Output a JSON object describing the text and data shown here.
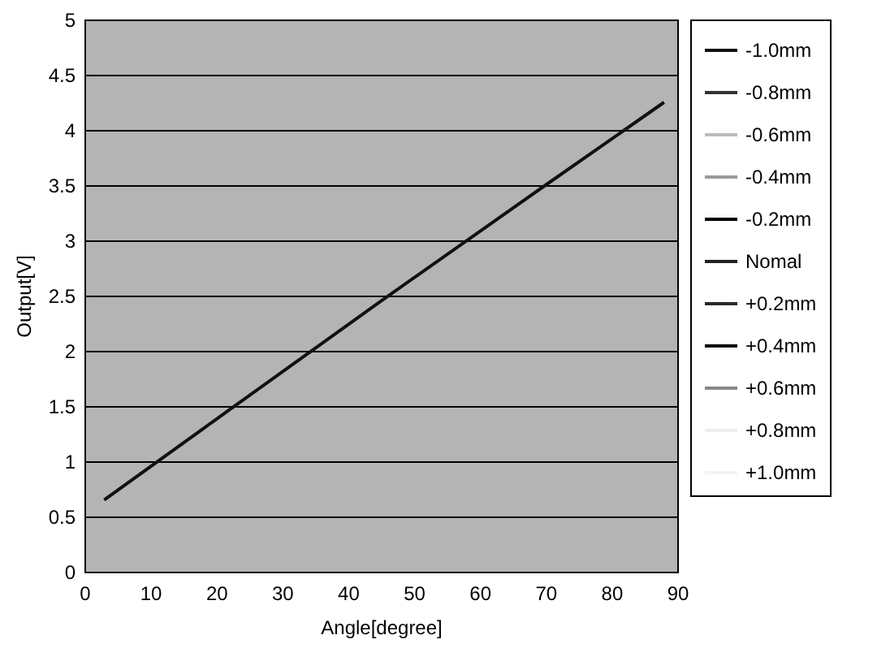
{
  "chart_data": {
    "type": "line",
    "xlabel": "Angle[degree]",
    "ylabel": "Output[V]",
    "x": [
      3,
      20,
      45,
      70,
      88
    ],
    "series": [
      {
        "name": "-1.0mm",
        "color": "#111111",
        "values": [
          0.65,
          1.38,
          2.45,
          3.5,
          4.25
        ]
      },
      {
        "name": "-0.8mm",
        "color": "#333333",
        "values": [
          null,
          null,
          null,
          null,
          null
        ]
      },
      {
        "name": "-0.6mm",
        "color": "#bbbbbb",
        "values": [
          null,
          null,
          null,
          null,
          null
        ]
      },
      {
        "name": "-0.4mm",
        "color": "#999999",
        "values": [
          null,
          null,
          null,
          null,
          null
        ]
      },
      {
        "name": "-0.2mm",
        "color": "#000000",
        "values": [
          null,
          null,
          null,
          null,
          null
        ]
      },
      {
        "name": "Nomal",
        "color": "#222222",
        "values": [
          null,
          null,
          null,
          null,
          null
        ]
      },
      {
        "name": "+0.2mm",
        "color": "#2a2a2a",
        "values": [
          null,
          null,
          null,
          null,
          null
        ]
      },
      {
        "name": "+0.4mm",
        "color": "#0a0a0a",
        "values": [
          null,
          null,
          null,
          null,
          null
        ]
      },
      {
        "name": "+0.6mm",
        "color": "#888888",
        "values": [
          null,
          null,
          null,
          null,
          null
        ]
      },
      {
        "name": "+0.8mm",
        "color": "#eeeeee",
        "values": [
          null,
          null,
          null,
          null,
          null
        ]
      },
      {
        "name": "+1.0mm",
        "color": "#f4f4f4",
        "values": [
          null,
          null,
          null,
          null,
          null
        ]
      }
    ],
    "xlim": [
      0,
      90
    ],
    "xticks": [
      0,
      10,
      20,
      30,
      40,
      50,
      60,
      70,
      80,
      90
    ],
    "ylim": [
      0,
      5
    ],
    "yticks": [
      0,
      0.5,
      1,
      1.5,
      2,
      2.5,
      3,
      3.5,
      4,
      4.5,
      5
    ],
    "grid": "y",
    "legend": "right",
    "marker": "none",
    "line_style": "solid"
  }
}
